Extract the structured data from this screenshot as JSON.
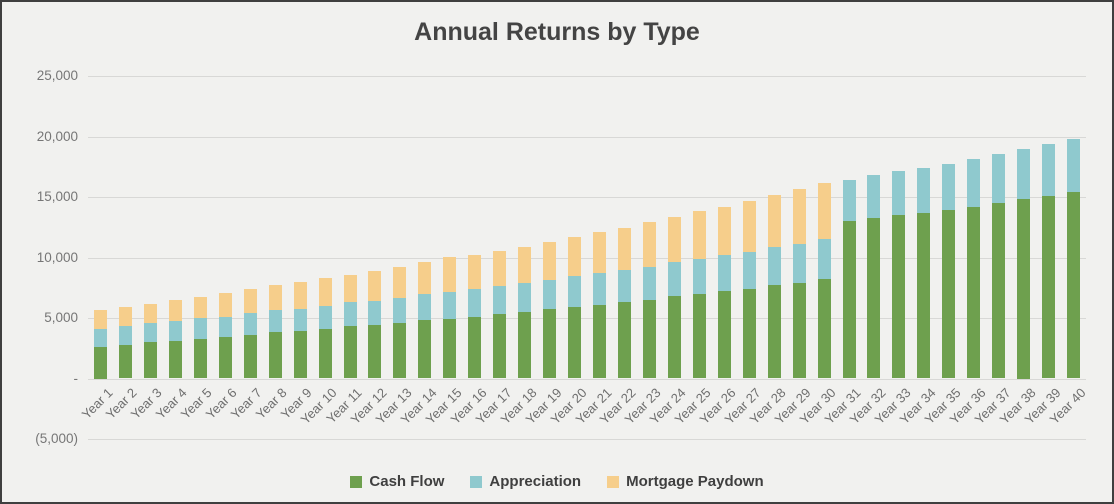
{
  "chart_data": {
    "type": "bar",
    "stacked": true,
    "title": "Annual Returns by Type",
    "xlabel": "",
    "ylabel": "",
    "ylim": [
      -5000,
      25000
    ],
    "grid": true,
    "legend_position": "bottom",
    "y_ticks": [
      {
        "value": 25000,
        "label": "25,000"
      },
      {
        "value": 20000,
        "label": "20,000"
      },
      {
        "value": 15000,
        "label": "15,000"
      },
      {
        "value": 10000,
        "label": "10,000"
      },
      {
        "value": 5000,
        "label": "5,000"
      },
      {
        "value": 0,
        "label": "-"
      },
      {
        "value": -5000,
        "label": "(5,000)"
      }
    ],
    "categories": [
      "Year 1",
      "Year 2",
      "Year 3",
      "Year 4",
      "Year 5",
      "Year 6",
      "Year 7",
      "Year 8",
      "Year 9",
      "Year 10",
      "Year 11",
      "Year 12",
      "Year 13",
      "Year 14",
      "Year 15",
      "Year 16",
      "Year 17",
      "Year 18",
      "Year 19",
      "Year 20",
      "Year 21",
      "Year 22",
      "Year 23",
      "Year 24",
      "Year 25",
      "Year 26",
      "Year 27",
      "Year 28",
      "Year 29",
      "Year 30",
      "Year 31",
      "Year 32",
      "Year 33",
      "Year 34",
      "Year 35",
      "Year 36",
      "Year 37",
      "Year 38",
      "Year 39",
      "Year 40"
    ],
    "series": [
      {
        "name": "Cash Flow",
        "color": "#6EA04E",
        "values": [
          2600,
          2800,
          3000,
          3100,
          3300,
          3400,
          3600,
          3800,
          3900,
          4100,
          4300,
          4400,
          4600,
          4800,
          4900,
          5100,
          5300,
          5500,
          5700,
          5900,
          6100,
          6300,
          6500,
          6800,
          7000,
          7200,
          7400,
          7700,
          7900,
          8200,
          13000,
          13300,
          13500,
          13700,
          13900,
          14200,
          14500,
          14800,
          15100,
          15400
        ]
      },
      {
        "name": "Appreciation",
        "color": "#8FC9CE",
        "values": [
          1500,
          1540,
          1590,
          1630,
          1680,
          1720,
          1770,
          1820,
          1870,
          1920,
          1980,
          2030,
          2090,
          2150,
          2210,
          2270,
          2330,
          2400,
          2470,
          2530,
          2610,
          2680,
          2750,
          2830,
          2910,
          2990,
          3080,
          3160,
          3250,
          3340,
          3430,
          3530,
          3630,
          3730,
          3840,
          3940,
          4050,
          4170,
          4280,
          4400
        ]
      },
      {
        "name": "Mortgage Paydown",
        "color": "#F6CE8B",
        "values": [
          1600,
          1600,
          1600,
          1750,
          1800,
          1950,
          2050,
          2100,
          2200,
          2300,
          2300,
          2450,
          2500,
          2650,
          2900,
          2850,
          2900,
          3000,
          3150,
          3250,
          3400,
          3500,
          3650,
          3750,
          3900,
          4000,
          4200,
          4350,
          4550,
          4650,
          0,
          0,
          0,
          0,
          0,
          0,
          0,
          0,
          0,
          0
        ]
      }
    ]
  }
}
